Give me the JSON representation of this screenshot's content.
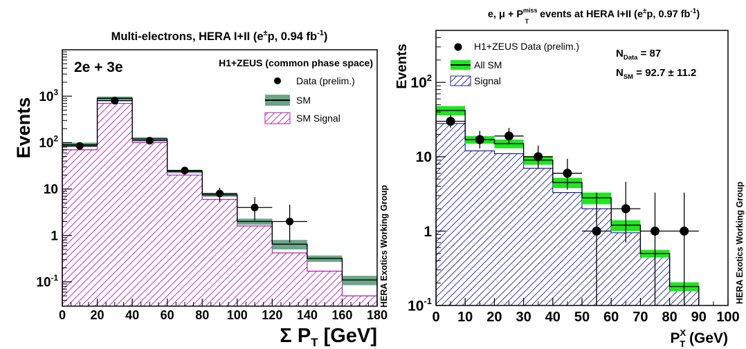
{
  "chart_data": [
    {
      "type": "bar",
      "title": "Multi-electrons, HERA I+II (e",
      "title_sup1": "±",
      "title_mid": "p, 0.94 fb",
      "title_sup2": "-1",
      "title_end": ")",
      "ylabel": "Events",
      "xlabel": "Σ P",
      "xlabel_sub": "T",
      "xlabel_unit": " [GeV]",
      "corner_label": "2e + 3e",
      "note": "H1+ZEUS (common phase space)",
      "side_label": "HERA Exotics Working Group",
      "xlim": [
        0,
        180
      ],
      "ylim": [
        0.03,
        10000
      ],
      "yscale": "log",
      "x_ticks": [
        "0",
        "20",
        "40",
        "60",
        "80",
        "100",
        "120",
        "140",
        "160",
        "180"
      ],
      "y_ticks": [
        {
          "base": "10",
          "exp": "-1",
          "value": 0.1
        },
        {
          "base": "1",
          "exp": "",
          "value": 1
        },
        {
          "base": "10",
          "exp": "",
          "value": 10
        },
        {
          "base": "10",
          "exp": "2",
          "value": 100
        },
        {
          "base": "10",
          "exp": "3",
          "value": 1000
        }
      ],
      "bin_edges": [
        0,
        20,
        40,
        60,
        80,
        100,
        120,
        140,
        160,
        180
      ],
      "legend": [
        "Data (prelim.)",
        "SM",
        "SM Signal"
      ],
      "legend_placement": "top-right",
      "series": [
        {
          "name": "SM",
          "values": [
            90,
            900,
            120,
            24,
            7.5,
            2.0,
            0.65,
            0.32,
            0.11
          ],
          "unc_low": [
            80,
            820,
            110,
            22,
            6.8,
            1.7,
            0.5,
            0.27,
            0.085
          ],
          "unc_high": [
            100,
            980,
            130,
            26,
            8.2,
            2.3,
            0.8,
            0.37,
            0.135
          ]
        },
        {
          "name": "SM Signal",
          "values": [
            70,
            700,
            100,
            20,
            6,
            1.6,
            0.42,
            0.17,
            0.05
          ]
        }
      ],
      "data": {
        "name": "Data (prelim.)",
        "x": [
          10,
          30,
          50,
          70,
          90,
          110,
          130
        ],
        "y": [
          85,
          800,
          110,
          25,
          8,
          4,
          2
        ],
        "err_low": [
          76,
          770,
          100,
          20,
          5.3,
          2.1,
          0.7
        ],
        "err_high": [
          95,
          830,
          121,
          30,
          10.7,
          6.7,
          4.6
        ]
      },
      "colors": {
        "sm_band": "#6aa688",
        "sm_line": "#000000",
        "signal": "#b41ab4",
        "data": "#000000"
      }
    },
    {
      "type": "bar",
      "title_pre": "e, μ + P",
      "title_sup": "miss",
      "title_sub": "T",
      "title_post": " events at HERA I+II (e",
      "title_sup1": "±",
      "title_mid": "p, 0.97 fb",
      "title_sup2": "-1",
      "title_end": ")",
      "ylabel": "Events",
      "xlabel": "P",
      "xlabel_sup": "X",
      "xlabel_sub": "T",
      "xlabel_unit": " (GeV)",
      "side_label": "HERA Exotics Working Group",
      "n_data_label": "N",
      "n_data_sub": "Data",
      "n_data_value": " = 87",
      "n_sm_label": "N",
      "n_sm_sub": "SM",
      "n_sm_value": " = 92.7 ± 11.2",
      "xlim": [
        0,
        100
      ],
      "ylim": [
        0.1,
        500
      ],
      "yscale": "log",
      "x_ticks": [
        "0",
        "10",
        "20",
        "30",
        "40",
        "50",
        "60",
        "70",
        "80",
        "90",
        "100"
      ],
      "y_ticks": [
        {
          "base": "10",
          "exp": "-1",
          "value": 0.1
        },
        {
          "base": "1",
          "exp": "",
          "value": 1
        },
        {
          "base": "10",
          "exp": "",
          "value": 10
        },
        {
          "base": "10",
          "exp": "2",
          "value": 100
        }
      ],
      "bin_edges": [
        0,
        10,
        20,
        30,
        40,
        50,
        60,
        70,
        80,
        90
      ],
      "legend": [
        "H1+ZEUS Data (prelim.)",
        "All SM",
        "Signal"
      ],
      "legend_placement": "top-left",
      "series": [
        {
          "name": "All SM",
          "values": [
            42,
            17,
            15,
            9,
            4.5,
            2.8,
            1.2,
            0.5,
            0.18
          ],
          "unc_low": [
            36,
            15,
            13,
            7.8,
            3.8,
            2.3,
            1.0,
            0.44,
            0.155
          ],
          "unc_high": [
            48,
            19,
            17,
            10.2,
            5.2,
            3.3,
            1.4,
            0.56,
            0.205
          ]
        },
        {
          "name": "Signal",
          "values": [
            28,
            12,
            11,
            7,
            3.3,
            2.0,
            0.95,
            0.45,
            0.16
          ]
        }
      ],
      "data": {
        "name": "H1+ZEUS Data (prelim.)",
        "x": [
          5,
          15,
          25,
          35,
          45,
          55,
          65,
          75,
          85
        ],
        "y": [
          30,
          17,
          19,
          10,
          6,
          1,
          2,
          1,
          1
        ],
        "err_low": [
          24.6,
          12.9,
          14.7,
          6.9,
          3.6,
          0.1,
          0.7,
          0.1,
          0.1
        ],
        "err_high": [
          36.5,
          22.3,
          24.4,
          14.1,
          9.4,
          3.3,
          4.6,
          3.3,
          3.3
        ]
      },
      "colors": {
        "sm_band": "#1ee61e",
        "sm_line": "#000000",
        "signal": "#1e1eb4",
        "data": "#000000"
      }
    }
  ]
}
